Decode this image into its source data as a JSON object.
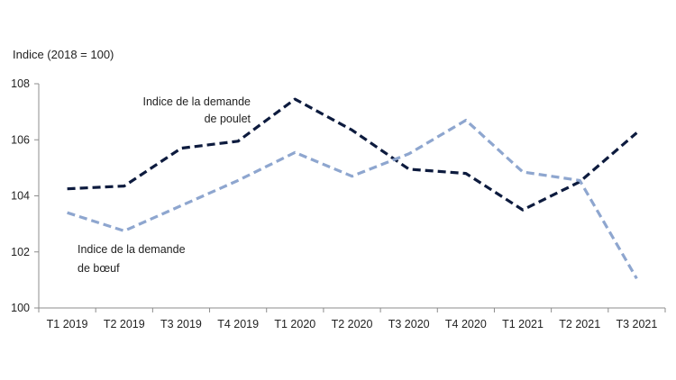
{
  "chart_data": {
    "type": "line",
    "title": "",
    "ylabel": "Indice (2018 = 100)",
    "xlabel": "",
    "categories": [
      "T1 2019",
      "T2 2019",
      "T3 2019",
      "T4 2019",
      "T1 2020",
      "T2 2020",
      "T3 2020",
      "T4 2020",
      "T1 2021",
      "T2 2021",
      "T3 2021"
    ],
    "ylim": [
      100,
      108
    ],
    "yticks": [
      "100",
      "102",
      "104",
      "106",
      "108"
    ],
    "grid": false,
    "series": [
      {
        "name": "Indice de la demande de poulet",
        "annotation_lines": [
          "Indice de la demande",
          "de poulet"
        ],
        "color": "#0d1b3e",
        "style": "dashed",
        "values": [
          104.25,
          104.35,
          105.7,
          105.95,
          107.45,
          106.35,
          104.95,
          104.8,
          103.5,
          104.5,
          106.25
        ]
      },
      {
        "name": "Indice de la demande de bœuf",
        "annotation_lines": [
          "Indice de la demande",
          "de bœuf"
        ],
        "color": "#8ea6cf",
        "style": "dashed",
        "values": [
          103.4,
          102.75,
          103.65,
          104.55,
          105.55,
          104.7,
          105.5,
          106.7,
          104.85,
          104.55,
          101.05
        ]
      }
    ]
  }
}
